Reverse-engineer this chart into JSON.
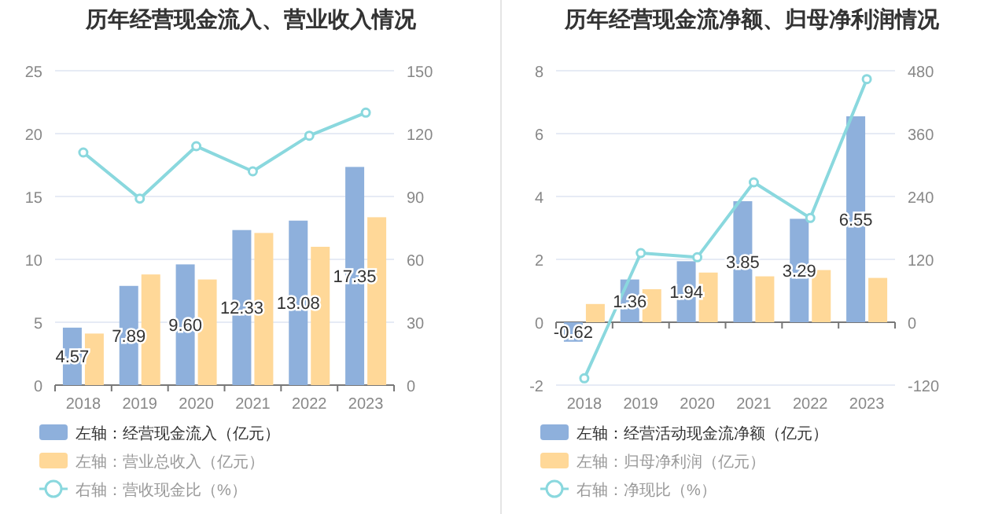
{
  "chart_data": [
    {
      "type": "bar",
      "title": "历年经营现金流入、营业收入情况",
      "categories": [
        "2018",
        "2019",
        "2020",
        "2021",
        "2022",
        "2023"
      ],
      "ylim": [
        0,
        25
      ],
      "yticks": [
        0,
        5,
        10,
        15,
        20,
        25
      ],
      "y2lim": [
        0,
        150
      ],
      "y2ticks": [
        0,
        30,
        60,
        90,
        120,
        150
      ],
      "grid": "y",
      "legend": "bottom",
      "series": [
        {
          "name": "左轴：经营现金流入（亿元）",
          "color": "#8eb0dc",
          "values": [
            4.57,
            7.89,
            9.6,
            12.33,
            13.08,
            17.35
          ],
          "value_labels": [
            "4.57",
            "7.89",
            "9.60",
            "12.33",
            "13.08",
            "17.35"
          ]
        },
        {
          "name": "左轴：营业总收入（亿元）",
          "color": "#ffd898",
          "values": [
            4.1,
            8.8,
            8.4,
            12.1,
            11.0,
            13.35
          ]
        },
        {
          "name": "右轴：营收现金比（%）",
          "color": "#8ad8de",
          "type": "line",
          "axis": "y2",
          "marker": "circle",
          "values": [
            111,
            89,
            114,
            102,
            119,
            130
          ]
        }
      ]
    },
    {
      "type": "bar",
      "title": "历年经营现金流净额、归母净利润情况",
      "categories": [
        "2018",
        "2019",
        "2020",
        "2021",
        "2022",
        "2023"
      ],
      "ylim": [
        -2,
        8
      ],
      "yticks": [
        -2,
        0,
        2,
        4,
        6,
        8
      ],
      "y2lim": [
        -120,
        480
      ],
      "y2ticks": [
        -120,
        0,
        120,
        240,
        360,
        480
      ],
      "grid": "y",
      "legend": "bottom",
      "series": [
        {
          "name": "左轴：经营活动现金流净额（亿元）",
          "color": "#8eb0dc",
          "values": [
            -0.62,
            1.36,
            1.94,
            3.85,
            3.29,
            6.55
          ],
          "value_labels": [
            "-0.62",
            "1.36",
            "1.94",
            "3.85",
            "3.29",
            "6.55"
          ]
        },
        {
          "name": "左轴：归母净利润（亿元）",
          "color": "#ffd898",
          "values": [
            0.58,
            1.05,
            1.58,
            1.46,
            1.66,
            1.41
          ]
        },
        {
          "name": "右轴：净现比（%）",
          "color": "#8ad8de",
          "type": "line",
          "axis": "y2",
          "marker": "circle",
          "values": [
            -107,
            132,
            124,
            267,
            199,
            464
          ]
        }
      ]
    }
  ]
}
